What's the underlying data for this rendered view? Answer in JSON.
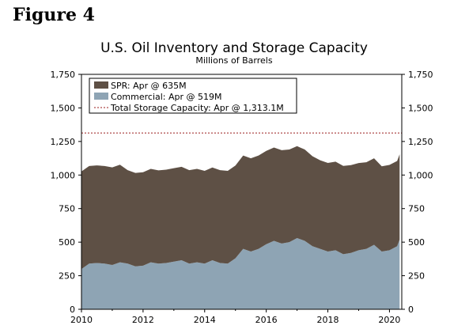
{
  "figure_label": "Figure 4",
  "chart_data": {
    "type": "area",
    "title": "U.S. Oil Inventory and Storage Capacity",
    "subtitle": "Millions of Barrels",
    "xlabel": "",
    "ylabel": "",
    "xlim": [
      2010,
      2020.4
    ],
    "ylim": [
      0,
      1750
    ],
    "x_ticks": [
      2010,
      2012,
      2014,
      2016,
      2018,
      2020
    ],
    "y_ticks": [
      0,
      250,
      500,
      750,
      1000,
      1250,
      1500,
      1750
    ],
    "y_tick_labels": [
      "0",
      "250",
      "500",
      "750",
      "1,000",
      "1,250",
      "1,500",
      "1,750"
    ],
    "stacked": true,
    "legend_position": "top-left",
    "x": [
      2010.0,
      2010.25,
      2010.5,
      2010.75,
      2011.0,
      2011.25,
      2011.5,
      2011.75,
      2012.0,
      2012.25,
      2012.5,
      2012.75,
      2013.0,
      2013.25,
      2013.5,
      2013.75,
      2014.0,
      2014.25,
      2014.5,
      2014.75,
      2015.0,
      2015.25,
      2015.5,
      2015.75,
      2016.0,
      2016.25,
      2016.5,
      2016.75,
      2017.0,
      2017.25,
      2017.5,
      2017.75,
      2018.0,
      2018.25,
      2018.5,
      2018.75,
      2019.0,
      2019.25,
      2019.5,
      2019.75,
      2020.0,
      2020.25,
      2020.33
    ],
    "series": [
      {
        "name": "Commercial: Apr @ 519M",
        "color": "#8ea4b4",
        "values": [
          300,
          340,
          345,
          340,
          330,
          350,
          340,
          320,
          325,
          350,
          340,
          345,
          355,
          365,
          340,
          350,
          340,
          365,
          345,
          340,
          380,
          450,
          430,
          450,
          485,
          510,
          490,
          500,
          530,
          510,
          470,
          450,
          430,
          440,
          410,
          420,
          440,
          450,
          480,
          430,
          440,
          470,
          519
        ]
      },
      {
        "name": "SPR: Apr @ 635M",
        "color": "#5e5045",
        "values": [
          727,
          727,
          727,
          727,
          727,
          727,
          696,
          696,
          696,
          696,
          695,
          695,
          696,
          696,
          696,
          696,
          691,
          691,
          691,
          691,
          691,
          695,
          695,
          695,
          695,
          695,
          695,
          690,
          685,
          680,
          670,
          660,
          660,
          660,
          658,
          654,
          649,
          645,
          645,
          635,
          635,
          635,
          635
        ]
      }
    ],
    "reference_line": {
      "name": "Total Storage Capacity: Apr @ 1,313.1M",
      "value": 1313.1,
      "color": "#9b1c1c"
    }
  }
}
